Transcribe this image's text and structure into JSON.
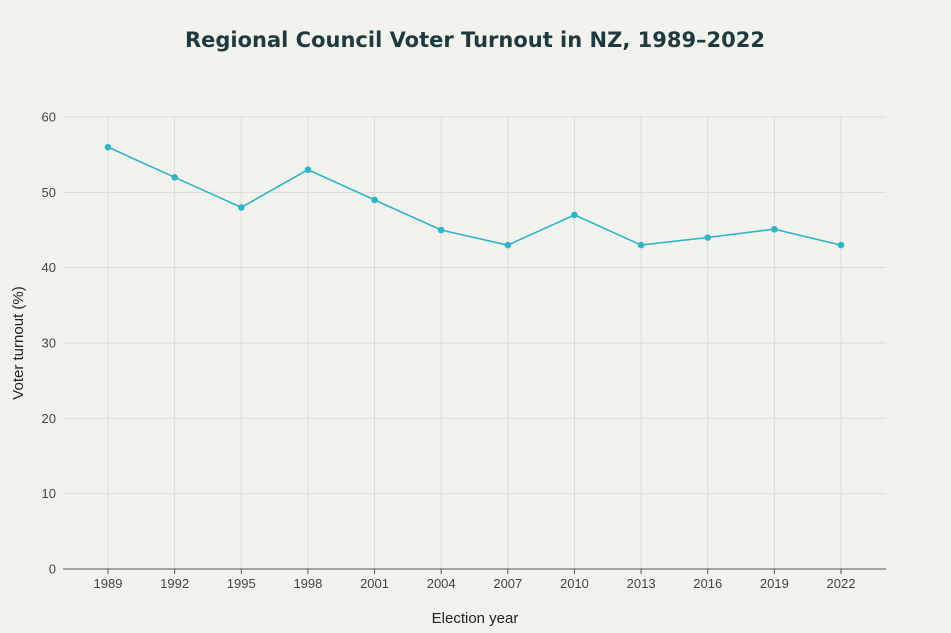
{
  "chart_data": {
    "type": "line",
    "title": "Regional Council Voter Turnout in NZ, 1989–2022",
    "xlabel": "Election year",
    "ylabel": "Voter turnout (%)",
    "x": [
      "1989",
      "1992",
      "1995",
      "1998",
      "2001",
      "2004",
      "2007",
      "2010",
      "2013",
      "2016",
      "2019",
      "2022"
    ],
    "series": [
      {
        "name": "Voter turnout",
        "values": [
          56,
          52,
          48,
          53,
          49,
          45,
          43,
          47,
          43,
          44,
          45.1,
          43
        ],
        "color": "#2fb4c9"
      }
    ],
    "ylim": [
      0,
      60
    ],
    "yticks": [
      "0",
      "10",
      "20",
      "30",
      "40",
      "50",
      "60"
    ],
    "grid": true,
    "legend": "none"
  }
}
